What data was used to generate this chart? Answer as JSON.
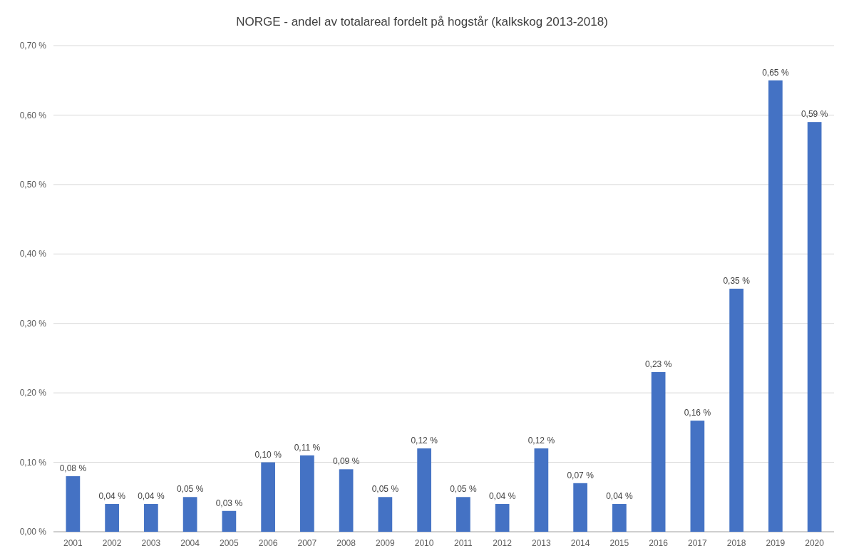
{
  "chart_data": {
    "type": "bar",
    "title": "NORGE - andel av totalareal fordelt på hogstår (kalkskog 2013-2018)",
    "categories": [
      "2001",
      "2002",
      "2003",
      "2004",
      "2005",
      "2006",
      "2007",
      "2008",
      "2009",
      "2010",
      "2011",
      "2012",
      "2013",
      "2014",
      "2015",
      "2016",
      "2017",
      "2018",
      "2019",
      "2020"
    ],
    "values": [
      0.08,
      0.04,
      0.04,
      0.05,
      0.03,
      0.1,
      0.11,
      0.09,
      0.05,
      0.12,
      0.05,
      0.04,
      0.12,
      0.07,
      0.04,
      0.23,
      0.16,
      0.35,
      0.65,
      0.59
    ],
    "value_labels": [
      "0,08 %",
      "0,04 %",
      "0,04 %",
      "0,05 %",
      "0,03 %",
      "0,10 %",
      "0,11 %",
      "0,09 %",
      "0,05 %",
      "0,12 %",
      "0,05 %",
      "0,04 %",
      "0,12 %",
      "0,07 %",
      "0,04 %",
      "0,23 %",
      "0,16 %",
      "0,35 %",
      "0,65 %",
      "0,59 %"
    ],
    "color": "#4472c4",
    "ylim": [
      0,
      0.7
    ],
    "yticks": [
      {
        "value": 0,
        "label": "0,00 %"
      },
      {
        "value": 0.1,
        "label": "0,10 %"
      },
      {
        "value": 0.2,
        "label": "0,20 %"
      },
      {
        "value": 0.3,
        "label": "0,30 %"
      },
      {
        "value": 0.4,
        "label": "0,40 %"
      },
      {
        "value": 0.5,
        "label": "0,50 %"
      },
      {
        "value": 0.6,
        "label": "0,60 %"
      },
      {
        "value": 0.7,
        "label": "0,70 %"
      }
    ],
    "grid": "y"
  }
}
